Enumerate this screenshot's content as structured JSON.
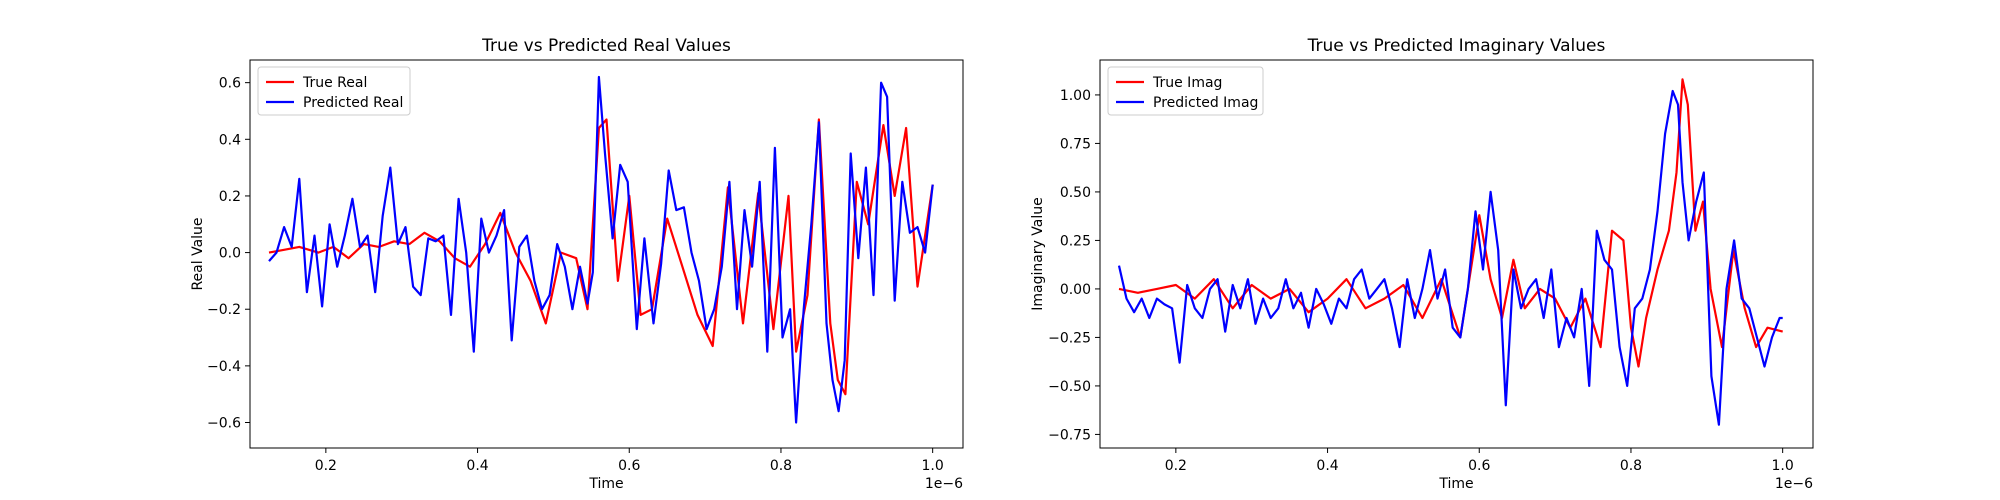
{
  "chart_data": [
    {
      "type": "line",
      "title": "True vs Predicted Real Values",
      "xlabel": "Time",
      "ylabel": "Real Value",
      "x_multiplier": "1e−6",
      "xlim": [
        0.1,
        1.04
      ],
      "ylim": [
        -0.69,
        0.68
      ],
      "xticks": [
        0.2,
        0.4,
        0.6,
        0.8,
        1.0
      ],
      "xtick_labels": [
        "0.2",
        "0.4",
        "0.6",
        "0.8",
        "1.0"
      ],
      "yticks": [
        -0.6,
        -0.4,
        -0.2,
        0.0,
        0.2,
        0.4,
        0.6
      ],
      "ytick_labels": [
        "−0.6",
        "−0.4",
        "−0.2",
        "0.0",
        "0.2",
        "0.4",
        "0.6"
      ],
      "grid": false,
      "legend": "top-left",
      "series": [
        {
          "name": "True Real",
          "color": "#ff0000",
          "x": [
            0.125,
            0.145,
            0.165,
            0.19,
            0.21,
            0.23,
            0.25,
            0.27,
            0.29,
            0.31,
            0.33,
            0.35,
            0.37,
            0.39,
            0.41,
            0.43,
            0.45,
            0.47,
            0.49,
            0.51,
            0.53,
            0.545,
            0.56,
            0.57,
            0.585,
            0.6,
            0.615,
            0.63,
            0.65,
            0.67,
            0.69,
            0.71,
            0.73,
            0.75,
            0.77,
            0.79,
            0.81,
            0.82,
            0.835,
            0.85,
            0.865,
            0.875,
            0.885,
            0.9,
            0.915,
            0.935,
            0.95,
            0.965,
            0.98,
            1.0
          ],
          "y": [
            0.0,
            0.01,
            0.02,
            0.0,
            0.02,
            -0.02,
            0.03,
            0.02,
            0.04,
            0.03,
            0.07,
            0.04,
            -0.02,
            -0.05,
            0.03,
            0.14,
            0.0,
            -0.1,
            -0.25,
            0.0,
            -0.02,
            -0.2,
            0.44,
            0.47,
            -0.1,
            0.2,
            -0.22,
            -0.2,
            0.12,
            -0.05,
            -0.22,
            -0.33,
            0.23,
            -0.25,
            0.21,
            -0.27,
            0.2,
            -0.35,
            -0.15,
            0.47,
            -0.25,
            -0.45,
            -0.5,
            0.25,
            0.1,
            0.45,
            0.2,
            0.44,
            -0.12,
            0.24
          ]
        },
        {
          "name": "Predicted Real",
          "color": "#0000ff",
          "x": [
            0.125,
            0.135,
            0.145,
            0.155,
            0.165,
            0.175,
            0.185,
            0.195,
            0.205,
            0.215,
            0.225,
            0.235,
            0.245,
            0.255,
            0.265,
            0.275,
            0.285,
            0.295,
            0.305,
            0.315,
            0.325,
            0.335,
            0.345,
            0.355,
            0.365,
            0.375,
            0.385,
            0.395,
            0.405,
            0.415,
            0.425,
            0.435,
            0.445,
            0.455,
            0.465,
            0.475,
            0.485,
            0.495,
            0.505,
            0.515,
            0.525,
            0.535,
            0.545,
            0.552,
            0.56,
            0.568,
            0.578,
            0.588,
            0.598,
            0.61,
            0.62,
            0.632,
            0.642,
            0.652,
            0.662,
            0.672,
            0.682,
            0.692,
            0.702,
            0.712,
            0.722,
            0.732,
            0.742,
            0.752,
            0.762,
            0.772,
            0.782,
            0.792,
            0.802,
            0.812,
            0.82,
            0.83,
            0.84,
            0.85,
            0.86,
            0.868,
            0.876,
            0.884,
            0.892,
            0.902,
            0.912,
            0.922,
            0.932,
            0.94,
            0.95,
            0.96,
            0.97,
            0.98,
            0.99,
            1.0
          ],
          "y": [
            -0.03,
            0.0,
            0.09,
            0.02,
            0.26,
            -0.14,
            0.06,
            -0.19,
            0.1,
            -0.05,
            0.06,
            0.19,
            0.02,
            0.06,
            -0.14,
            0.13,
            0.3,
            0.03,
            0.09,
            -0.12,
            -0.15,
            0.05,
            0.04,
            0.06,
            -0.22,
            0.19,
            0.0,
            -0.35,
            0.12,
            0.0,
            0.06,
            0.15,
            -0.31,
            0.02,
            0.06,
            -0.1,
            -0.2,
            -0.15,
            0.03,
            -0.05,
            -0.2,
            -0.05,
            -0.18,
            -0.07,
            0.62,
            0.35,
            0.05,
            0.31,
            0.25,
            -0.27,
            0.05,
            -0.25,
            -0.04,
            0.29,
            0.15,
            0.16,
            0.0,
            -0.1,
            -0.27,
            -0.2,
            -0.05,
            0.25,
            -0.2,
            0.15,
            -0.05,
            0.25,
            -0.35,
            0.37,
            -0.3,
            -0.2,
            -0.6,
            -0.2,
            0.1,
            0.46,
            -0.25,
            -0.45,
            -0.56,
            -0.38,
            0.35,
            -0.02,
            0.3,
            -0.15,
            0.6,
            0.55,
            -0.17,
            0.25,
            0.07,
            0.09,
            0.0,
            0.24
          ]
        }
      ]
    },
    {
      "type": "line",
      "title": "True vs Predicted Imaginary Values",
      "xlabel": "Time",
      "ylabel": "Imaginary Value",
      "x_multiplier": "1e−6",
      "xlim": [
        0.1,
        1.04
      ],
      "ylim": [
        -0.82,
        1.18
      ],
      "xticks": [
        0.2,
        0.4,
        0.6,
        0.8,
        1.0
      ],
      "xtick_labels": [
        "0.2",
        "0.4",
        "0.6",
        "0.8",
        "1.0"
      ],
      "yticks": [
        -0.75,
        -0.5,
        -0.25,
        0.0,
        0.25,
        0.5,
        0.75,
        1.0
      ],
      "ytick_labels": [
        "−0.75",
        "−0.50",
        "−0.25",
        "0.00",
        "0.25",
        "0.50",
        "0.75",
        "1.00"
      ],
      "grid": false,
      "legend": "top-left",
      "series": [
        {
          "name": "True Imag",
          "color": "#ff0000",
          "x": [
            0.125,
            0.15,
            0.175,
            0.2,
            0.225,
            0.25,
            0.275,
            0.3,
            0.325,
            0.35,
            0.375,
            0.4,
            0.425,
            0.45,
            0.475,
            0.5,
            0.525,
            0.55,
            0.575,
            0.6,
            0.615,
            0.63,
            0.645,
            0.66,
            0.68,
            0.7,
            0.72,
            0.74,
            0.76,
            0.775,
            0.79,
            0.8,
            0.81,
            0.82,
            0.835,
            0.85,
            0.86,
            0.868,
            0.875,
            0.885,
            0.895,
            0.905,
            0.92,
            0.935,
            0.95,
            0.965,
            0.98,
            1.0
          ],
          "y": [
            0.0,
            -0.02,
            0.0,
            0.02,
            -0.05,
            0.05,
            -0.1,
            0.02,
            -0.05,
            0.0,
            -0.12,
            -0.05,
            0.05,
            -0.1,
            -0.05,
            0.02,
            -0.15,
            0.05,
            -0.25,
            0.38,
            0.05,
            -0.15,
            0.15,
            -0.1,
            0.0,
            -0.05,
            -0.2,
            -0.05,
            -0.3,
            0.3,
            0.25,
            -0.2,
            -0.4,
            -0.15,
            0.1,
            0.3,
            0.6,
            1.08,
            0.95,
            0.3,
            0.45,
            0.0,
            -0.3,
            0.2,
            -0.1,
            -0.3,
            -0.2,
            -0.22
          ]
        },
        {
          "name": "Predicted Imag",
          "color": "#0000ff",
          "x": [
            0.125,
            0.135,
            0.145,
            0.155,
            0.165,
            0.175,
            0.185,
            0.195,
            0.205,
            0.215,
            0.225,
            0.235,
            0.245,
            0.255,
            0.265,
            0.275,
            0.285,
            0.295,
            0.305,
            0.315,
            0.325,
            0.335,
            0.345,
            0.355,
            0.365,
            0.375,
            0.385,
            0.395,
            0.405,
            0.415,
            0.425,
            0.435,
            0.445,
            0.455,
            0.465,
            0.475,
            0.485,
            0.495,
            0.505,
            0.515,
            0.525,
            0.535,
            0.545,
            0.555,
            0.565,
            0.575,
            0.585,
            0.595,
            0.605,
            0.615,
            0.625,
            0.635,
            0.645,
            0.655,
            0.665,
            0.675,
            0.685,
            0.695,
            0.705,
            0.715,
            0.725,
            0.735,
            0.745,
            0.755,
            0.765,
            0.775,
            0.785,
            0.795,
            0.805,
            0.815,
            0.825,
            0.835,
            0.845,
            0.855,
            0.862,
            0.868,
            0.876,
            0.886,
            0.896,
            0.906,
            0.916,
            0.926,
            0.936,
            0.946,
            0.956,
            0.966,
            0.976,
            0.986,
            0.996,
            1.0
          ],
          "y": [
            0.12,
            -0.05,
            -0.12,
            -0.05,
            -0.15,
            -0.05,
            -0.08,
            -0.1,
            -0.38,
            0.02,
            -0.1,
            -0.15,
            0.0,
            0.05,
            -0.22,
            0.02,
            -0.1,
            0.05,
            -0.18,
            -0.05,
            -0.15,
            -0.1,
            0.05,
            -0.1,
            -0.02,
            -0.2,
            0.0,
            -0.08,
            -0.18,
            -0.05,
            -0.1,
            0.05,
            0.1,
            -0.05,
            0.0,
            0.05,
            -0.1,
            -0.3,
            0.05,
            -0.15,
            0.0,
            0.2,
            -0.05,
            0.1,
            -0.2,
            -0.25,
            0.0,
            0.4,
            0.1,
            0.5,
            0.2,
            -0.6,
            0.1,
            -0.1,
            0.0,
            0.05,
            -0.15,
            0.1,
            -0.3,
            -0.15,
            -0.25,
            0.0,
            -0.5,
            0.3,
            0.15,
            0.1,
            -0.3,
            -0.5,
            -0.1,
            -0.05,
            0.1,
            0.4,
            0.8,
            1.02,
            0.95,
            0.55,
            0.25,
            0.45,
            0.6,
            -0.45,
            -0.7,
            0.0,
            0.25,
            -0.05,
            -0.1,
            -0.25,
            -0.4,
            -0.25,
            -0.15,
            -0.15
          ]
        }
      ]
    }
  ]
}
